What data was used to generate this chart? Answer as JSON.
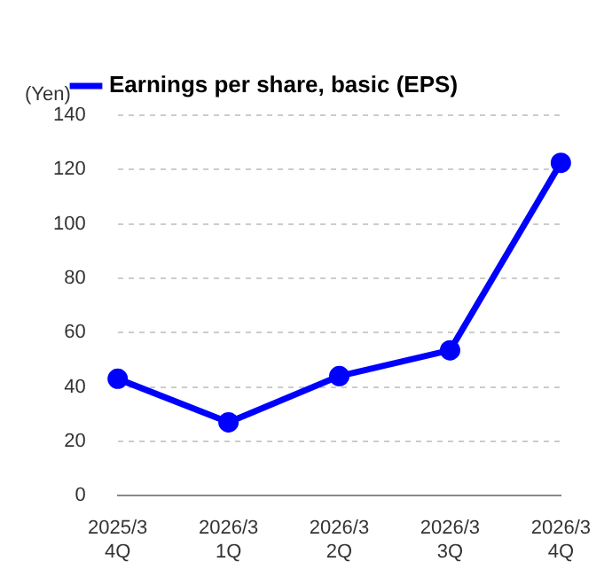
{
  "chart_data": {
    "type": "line",
    "ylabel": "(Yen)",
    "categories": [
      "2025/3\n4Q",
      "2026/3\n1Q",
      "2026/3\n2Q",
      "2026/3\n3Q",
      "2026/3\n4Q"
    ],
    "series": [
      {
        "name": "Earnings per share, basic (EPS)",
        "color": "#0000ff",
        "values": [
          43,
          27,
          44,
          53.5,
          122.5
        ]
      }
    ],
    "ylim": [
      0,
      140
    ],
    "yticks": [
      0,
      20,
      40,
      60,
      80,
      100,
      120,
      140
    ],
    "grid": "y",
    "legend": "top",
    "marker": "circle",
    "line_style": "solid"
  }
}
